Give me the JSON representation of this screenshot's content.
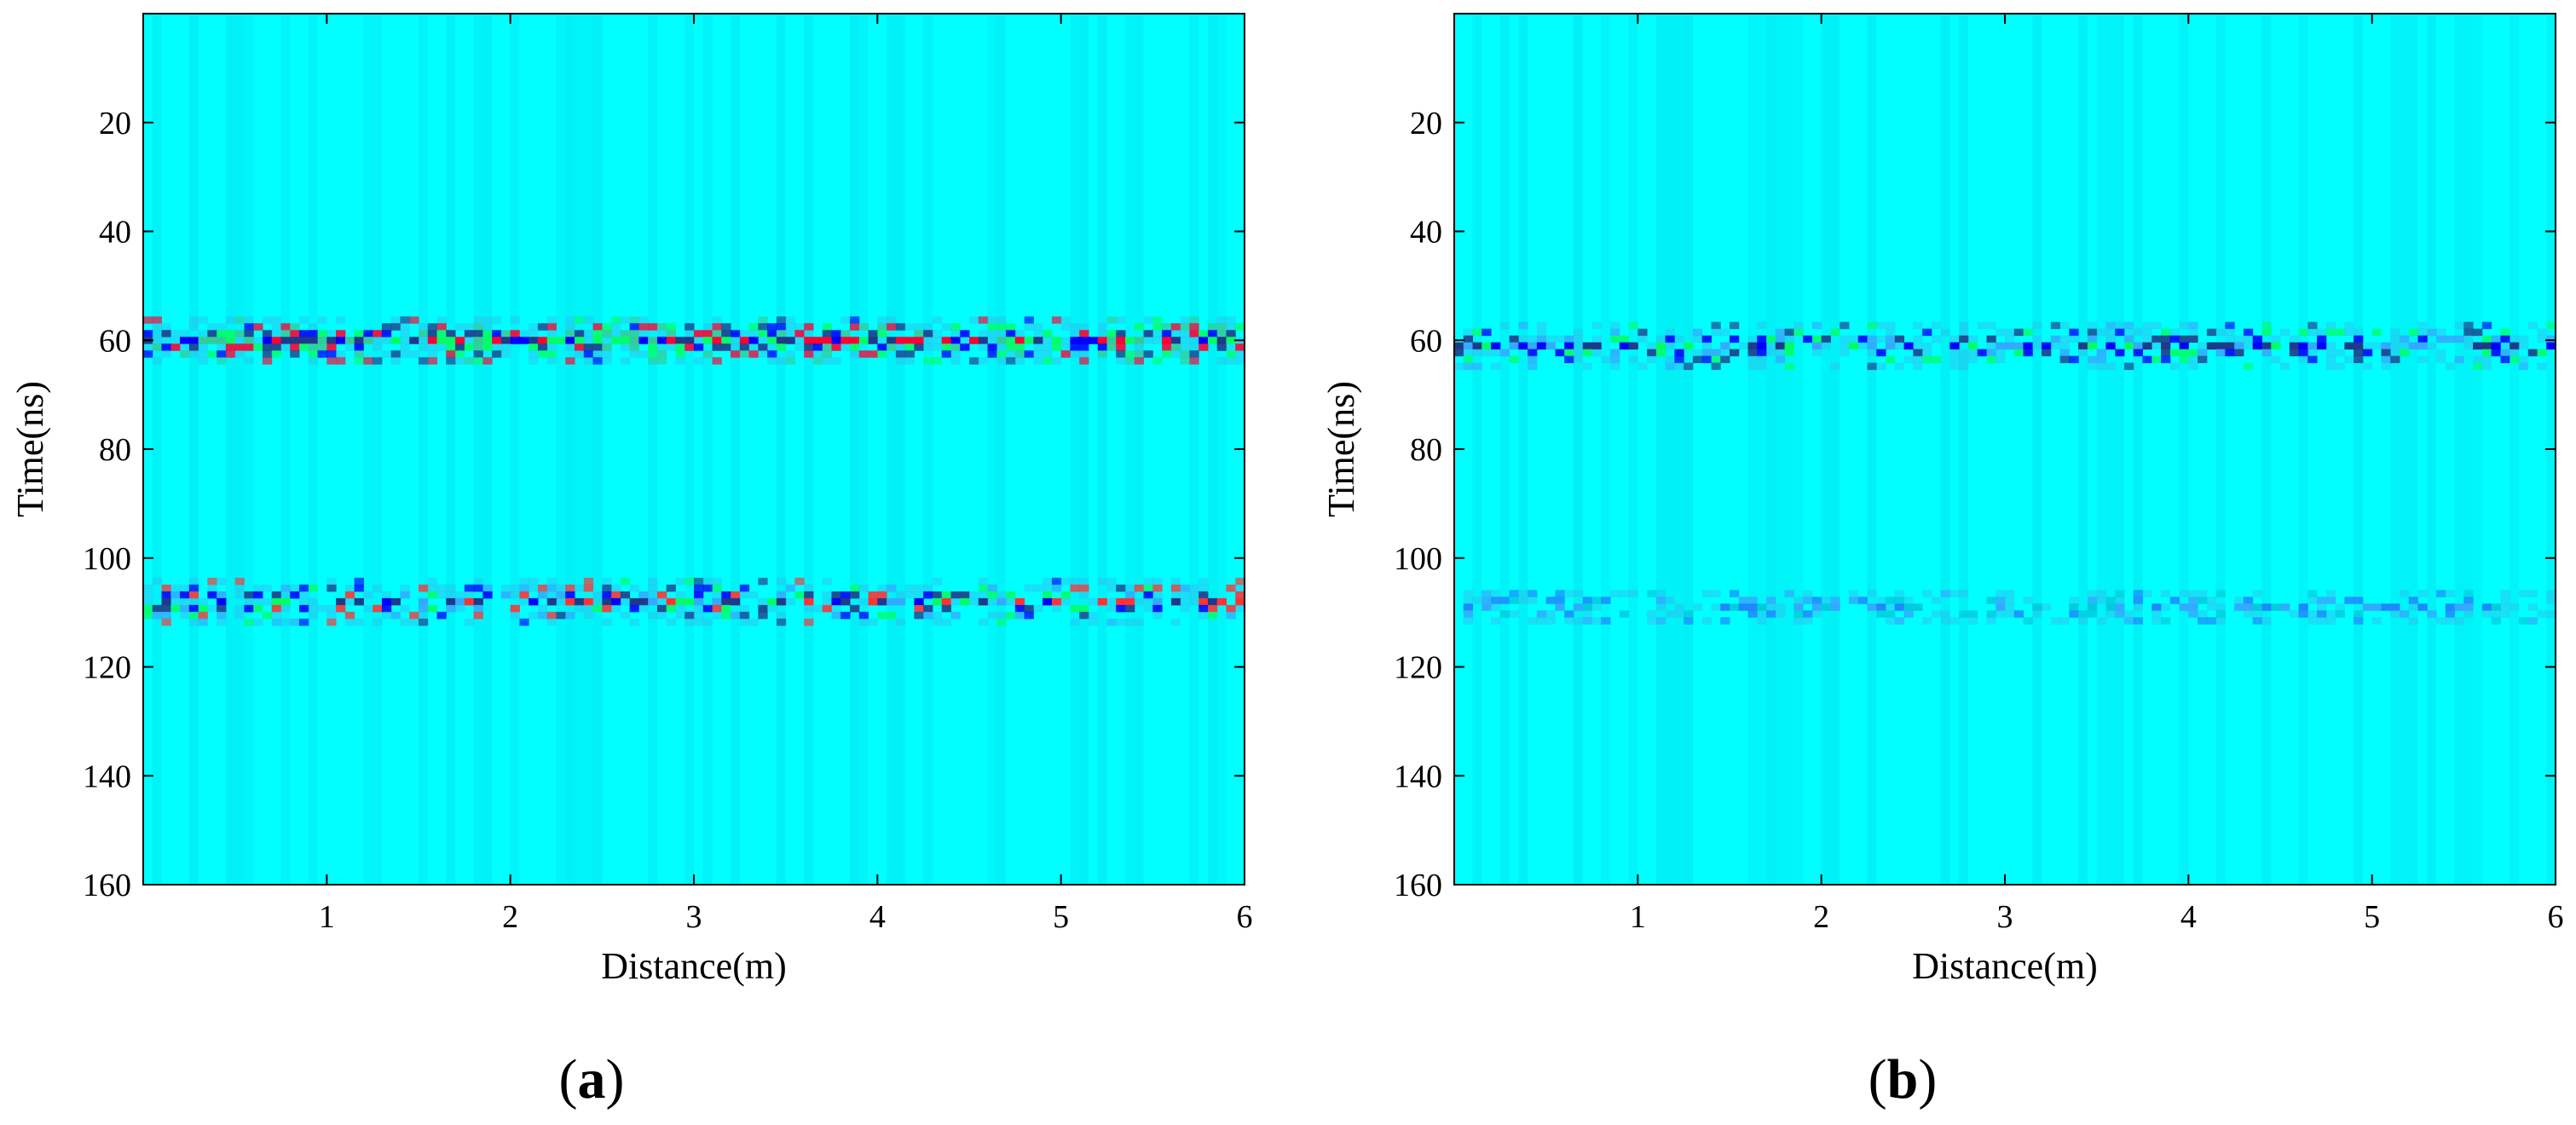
{
  "chart_data": [
    {
      "type": "heatmap",
      "panel_label": "a",
      "xlabel": "Distance(m)",
      "ylabel": "Time(ns)",
      "xlim": [
        0,
        6
      ],
      "ylim": [
        0,
        160
      ],
      "y_reversed": true,
      "xticks": [
        1,
        2,
        3,
        4,
        5,
        6
      ],
      "yticks": [
        20,
        40,
        60,
        80,
        100,
        120,
        140,
        160
      ],
      "background_color": "#00ffff",
      "bands": [
        {
          "time_ns": 60,
          "intensity": "strong",
          "colors": [
            "#ff0033",
            "#0000ff",
            "#00ff66",
            "#1e3a8a",
            "#33cc99"
          ]
        },
        {
          "time_ns": 108,
          "intensity": "medium",
          "colors": [
            "#0000ff",
            "#00ff66",
            "#1e3a8a",
            "#ff3333",
            "#33aaff"
          ]
        }
      ]
    },
    {
      "type": "heatmap",
      "panel_label": "b",
      "xlabel": "Distance(m)",
      "ylabel": "Time(ns)",
      "xlim": [
        0,
        6
      ],
      "ylim": [
        0,
        160
      ],
      "y_reversed": true,
      "xticks": [
        1,
        2,
        3,
        4,
        5,
        6
      ],
      "yticks": [
        20,
        40,
        60,
        80,
        100,
        120,
        140,
        160
      ],
      "background_color": "#00ffff",
      "bands": [
        {
          "time_ns": 61,
          "intensity": "medium",
          "colors": [
            "#0000ff",
            "#1e3a8a",
            "#00ff66",
            "#33aaff"
          ]
        },
        {
          "time_ns": 109,
          "intensity": "weak",
          "colors": [
            "#33aaff",
            "#1e88ff",
            "#00ccdd"
          ]
        }
      ]
    }
  ]
}
